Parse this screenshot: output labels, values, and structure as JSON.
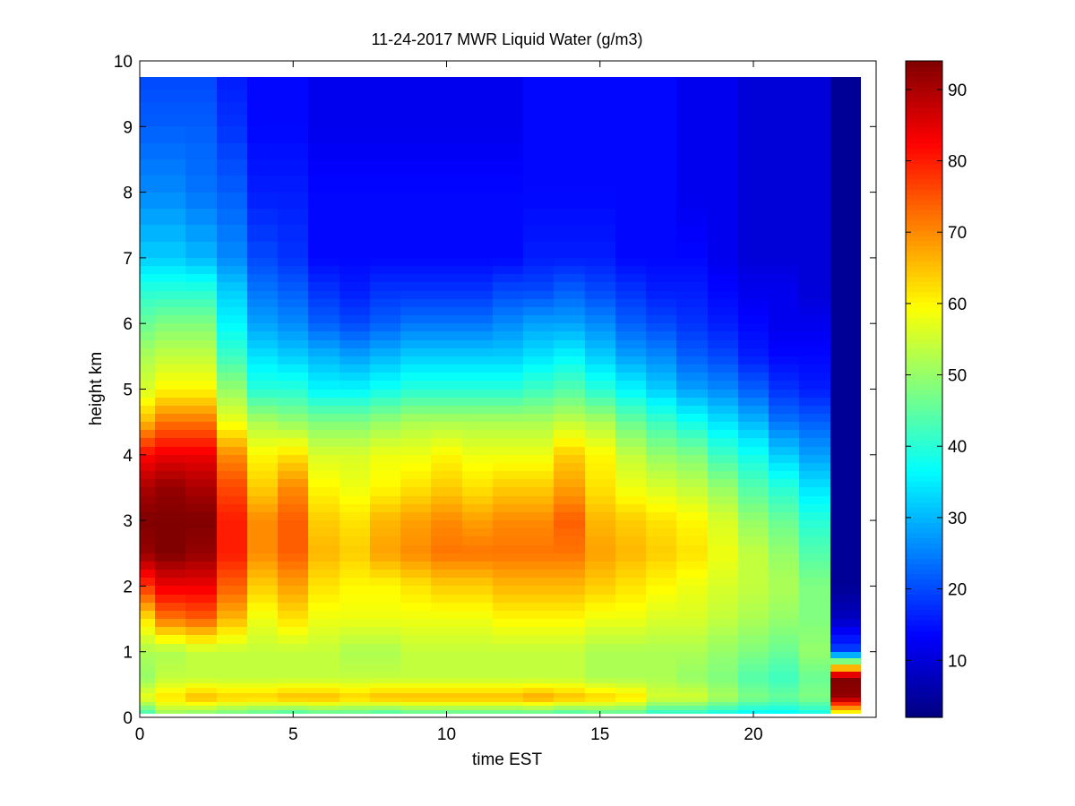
{
  "chart_data": {
    "type": "heatmap",
    "title": "11-24-2017 MWR Liquid Water (g/m3)",
    "xlabel": "time EST",
    "ylabel": "height km",
    "xlim": [
      0,
      24
    ],
    "ylim": [
      0,
      10
    ],
    "x_ticks": [
      0,
      5,
      10,
      15,
      20
    ],
    "y_ticks": [
      0,
      1,
      2,
      3,
      4,
      5,
      6,
      7,
      8,
      9,
      10
    ],
    "colorbar": {
      "colormap": "jet",
      "range": [
        2,
        94
      ],
      "ticks": [
        10,
        20,
        30,
        40,
        50,
        60,
        70,
        80,
        90
      ]
    },
    "x": [
      0,
      1,
      2,
      3,
      4,
      5,
      6,
      7,
      8,
      9,
      10,
      11,
      12,
      13,
      14,
      15,
      16,
      17,
      18,
      19,
      20,
      21,
      22,
      23
    ],
    "y_levels": [
      0.05,
      0.3,
      0.6,
      1.0,
      1.5,
      2.0,
      2.5,
      3.0,
      3.5,
      4.0,
      4.5,
      5.0,
      5.5,
      6.0,
      6.5,
      7.0,
      8.0,
      9.0,
      9.75
    ],
    "z": [
      [
        42,
        50,
        48,
        46,
        44,
        42,
        44,
        44,
        42,
        44,
        44,
        44,
        44,
        44,
        42,
        44,
        44,
        40,
        40,
        38,
        36,
        36,
        38,
        56
      ],
      [
        58,
        62,
        66,
        64,
        64,
        66,
        66,
        64,
        66,
        66,
        66,
        66,
        66,
        68,
        66,
        64,
        62,
        56,
        56,
        52,
        48,
        46,
        48,
        92
      ],
      [
        50,
        54,
        54,
        54,
        54,
        54,
        54,
        54,
        54,
        54,
        54,
        54,
        54,
        54,
        54,
        52,
        52,
        52,
        50,
        48,
        44,
        42,
        46,
        94
      ],
      [
        52,
        52,
        54,
        54,
        54,
        54,
        54,
        52,
        52,
        54,
        54,
        54,
        54,
        54,
        54,
        52,
        52,
        52,
        52,
        50,
        48,
        46,
        50,
        20
      ],
      [
        62,
        72,
        74,
        66,
        58,
        62,
        58,
        58,
        58,
        58,
        58,
        58,
        60,
        60,
        60,
        58,
        58,
        56,
        56,
        54,
        52,
        50,
        48,
        8
      ],
      [
        78,
        84,
        84,
        74,
        64,
        68,
        62,
        60,
        60,
        62,
        64,
        64,
        66,
        66,
        66,
        64,
        62,
        60,
        58,
        56,
        54,
        52,
        48,
        4
      ],
      [
        92,
        94,
        92,
        80,
        70,
        74,
        66,
        64,
        68,
        70,
        72,
        72,
        72,
        72,
        72,
        68,
        66,
        64,
        62,
        58,
        54,
        50,
        44,
        4
      ],
      [
        94,
        94,
        94,
        80,
        70,
        74,
        64,
        62,
        66,
        68,
        70,
        68,
        70,
        70,
        74,
        66,
        64,
        62,
        60,
        56,
        50,
        46,
        40,
        4
      ],
      [
        90,
        92,
        90,
        76,
        64,
        70,
        60,
        58,
        60,
        62,
        64,
        62,
        64,
        64,
        68,
        62,
        58,
        56,
        54,
        50,
        44,
        40,
        34,
        4
      ],
      [
        82,
        84,
        84,
        70,
        60,
        62,
        56,
        56,
        58,
        58,
        60,
        58,
        58,
        58,
        64,
        60,
        54,
        50,
        48,
        42,
        38,
        32,
        28,
        4
      ],
      [
        66,
        72,
        72,
        58,
        52,
        50,
        48,
        48,
        50,
        52,
        52,
        52,
        52,
        52,
        54,
        52,
        46,
        42,
        38,
        34,
        30,
        24,
        22,
        4
      ],
      [
        56,
        60,
        60,
        50,
        40,
        40,
        36,
        36,
        38,
        40,
        40,
        40,
        40,
        42,
        44,
        40,
        36,
        32,
        28,
        26,
        22,
        18,
        16,
        4
      ],
      [
        52,
        54,
        54,
        42,
        34,
        32,
        30,
        28,
        30,
        32,
        32,
        32,
        32,
        34,
        36,
        32,
        28,
        26,
        22,
        20,
        16,
        14,
        14,
        4
      ],
      [
        46,
        48,
        48,
        36,
        28,
        26,
        22,
        20,
        22,
        24,
        24,
        24,
        26,
        28,
        28,
        26,
        22,
        20,
        18,
        16,
        14,
        12,
        12,
        4
      ],
      [
        40,
        40,
        40,
        32,
        24,
        22,
        18,
        16,
        18,
        18,
        18,
        18,
        20,
        20,
        22,
        20,
        18,
        16,
        16,
        14,
        12,
        12,
        10,
        4
      ],
      [
        32,
        32,
        30,
        26,
        20,
        18,
        14,
        14,
        14,
        14,
        14,
        14,
        14,
        16,
        16,
        16,
        14,
        14,
        14,
        12,
        10,
        10,
        10,
        4
      ],
      [
        26,
        26,
        24,
        22,
        16,
        16,
        14,
        14,
        14,
        14,
        14,
        14,
        14,
        14,
        14,
        14,
        14,
        14,
        12,
        12,
        10,
        10,
        10,
        4
      ],
      [
        22,
        22,
        22,
        18,
        14,
        14,
        12,
        12,
        12,
        12,
        12,
        12,
        12,
        14,
        14,
        14,
        14,
        14,
        12,
        12,
        10,
        10,
        10,
        4
      ],
      [
        20,
        20,
        20,
        16,
        14,
        14,
        12,
        12,
        12,
        12,
        12,
        12,
        12,
        14,
        14,
        14,
        14,
        14,
        12,
        12,
        10,
        10,
        10,
        4
      ]
    ]
  }
}
